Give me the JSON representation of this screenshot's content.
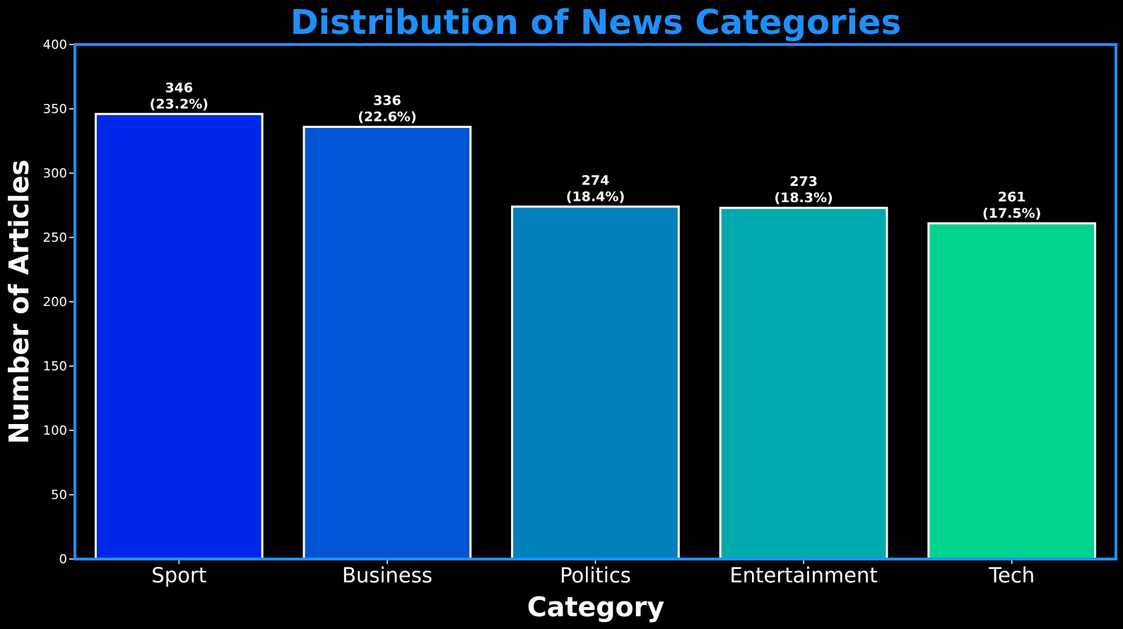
{
  "chart_data": {
    "type": "bar",
    "title": "Distribution of News Categories",
    "xlabel": "Category",
    "ylabel": "Number of Articles",
    "categories": [
      "Sport",
      "Business",
      "Politics",
      "Entertainment",
      "Tech"
    ],
    "values": [
      346,
      336,
      274,
      273,
      261
    ],
    "value_labels": [
      "346",
      "336",
      "274",
      "273",
      "261"
    ],
    "percent_labels": [
      "(23.2%)",
      "(22.6%)",
      "(18.4%)",
      "(18.3%)",
      "(17.5%)"
    ],
    "bar_colors": [
      "#0028e8",
      "#0055d4",
      "#0080bc",
      "#00aaae",
      "#00d290"
    ],
    "ylim": [
      0,
      400
    ],
    "yticks": [
      0,
      50,
      100,
      150,
      200,
      250,
      300,
      350,
      400
    ],
    "ytick_labels": [
      "0",
      "50",
      "100",
      "150",
      "200",
      "250",
      "300",
      "350",
      "400"
    ],
    "grid": false,
    "legend": "none"
  },
  "colors": {
    "background": "#000000",
    "title": "#1e90ff",
    "frame": "#1e90ff",
    "bar_edge": "#ffffff",
    "text": "#ffffff"
  }
}
